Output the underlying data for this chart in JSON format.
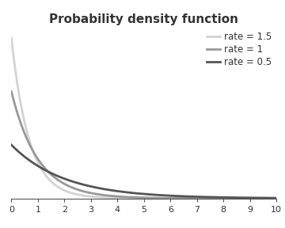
{
  "title": "Probability density function",
  "title_fontsize": 11,
  "title_fontweight": "bold",
  "xlim": [
    0,
    10
  ],
  "ylim": [
    0,
    1.6
  ],
  "x_ticks": [
    0,
    1,
    2,
    3,
    4,
    5,
    6,
    7,
    8,
    9,
    10
  ],
  "lines": [
    {
      "rate": 1.5,
      "color": "#d3d3d3",
      "linewidth": 2.0,
      "label": "rate = 1.5"
    },
    {
      "rate": 1.0,
      "color": "#999999",
      "linewidth": 2.0,
      "label": "rate = 1"
    },
    {
      "rate": 0.5,
      "color": "#555555",
      "linewidth": 2.0,
      "label": "rate = 0.5"
    }
  ],
  "legend_fontsize": 8.5,
  "background_color": "#ffffff",
  "axis_color": "#555555",
  "text_color": "#333333"
}
